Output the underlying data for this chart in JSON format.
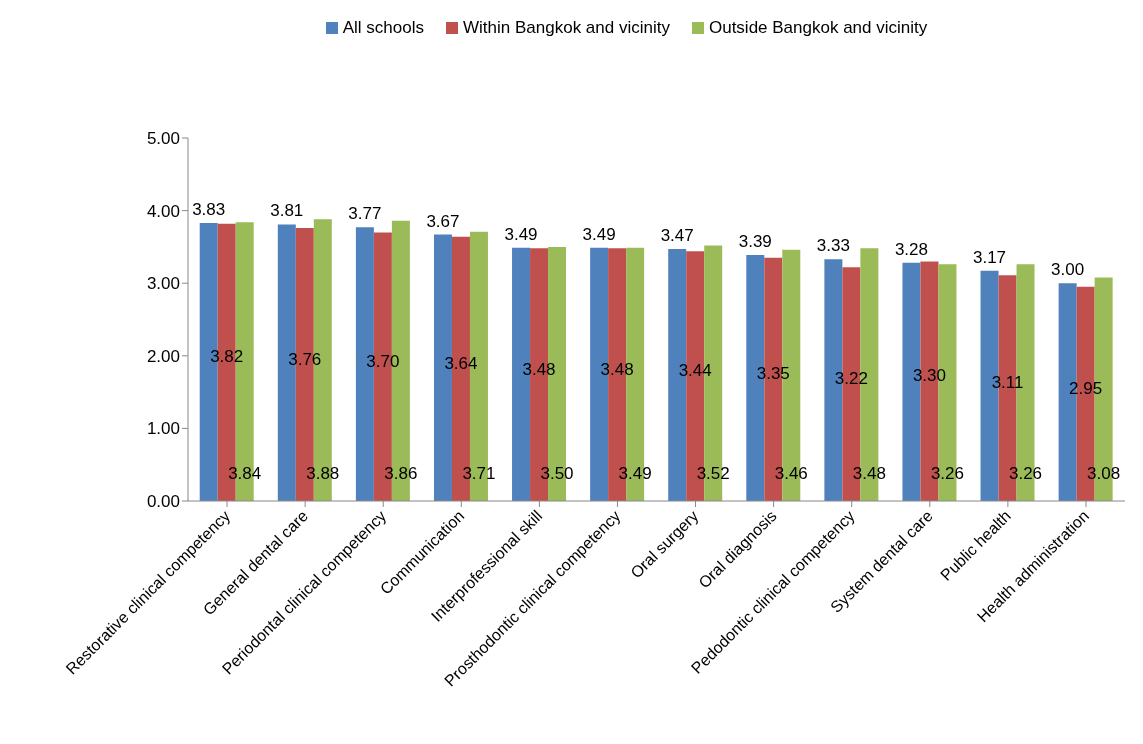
{
  "chart_data": {
    "type": "bar",
    "categories": [
      "Restorative clinical competency",
      "General dental care",
      "Periodontal clinical competency",
      "Communication",
      "Interprofessional skill",
      "Prosthodontic clinical competency",
      "Oral surgery",
      "Oral diagnosis",
      "Pedodontic clinical competency",
      "System dental care",
      "Public health",
      "Health administration"
    ],
    "series": [
      {
        "name": "All schools",
        "color": "#4f81bd",
        "values": [
          3.83,
          3.81,
          3.77,
          3.67,
          3.49,
          3.49,
          3.47,
          3.39,
          3.33,
          3.28,
          3.17,
          3.0
        ],
        "value_labels": [
          "3.83",
          "3.81",
          "3.77",
          "3.67",
          "3.49",
          "3.49",
          "3.47",
          "3.39",
          "3.33",
          "3.28",
          "3.17",
          "3.00"
        ]
      },
      {
        "name": "Within Bangkok and vicinity",
        "color": "#c0504d",
        "values": [
          3.82,
          3.76,
          3.7,
          3.64,
          3.48,
          3.48,
          3.44,
          3.35,
          3.22,
          3.3,
          3.11,
          2.95
        ],
        "value_labels": [
          "3.82",
          "3.76",
          "3.70",
          "3.64",
          "3.48",
          "3.48",
          "3.44",
          "3.35",
          "3.22",
          "3.30",
          "3.11",
          "2.95"
        ]
      },
      {
        "name": "Outside Bangkok and vicinity",
        "color": "#9bbb59",
        "values": [
          3.84,
          3.88,
          3.86,
          3.71,
          3.5,
          3.49,
          3.52,
          3.46,
          3.48,
          3.26,
          3.26,
          3.08
        ],
        "value_labels": [
          "3.84",
          "3.88",
          "3.86",
          "3.71",
          "3.50",
          "3.49",
          "3.52",
          "3.46",
          "3.48",
          "3.26",
          "3.26",
          "3.08"
        ]
      }
    ],
    "ylim": [
      0,
      5
    ],
    "yticks": [
      {
        "value": 0,
        "label": "0.00"
      },
      {
        "value": 1,
        "label": "1.00"
      },
      {
        "value": 2,
        "label": "2.00"
      },
      {
        "value": 3,
        "label": "3.00"
      },
      {
        "value": 4,
        "label": "4.00"
      },
      {
        "value": 5,
        "label": "5.00"
      }
    ],
    "grid": false,
    "legend": "top"
  }
}
